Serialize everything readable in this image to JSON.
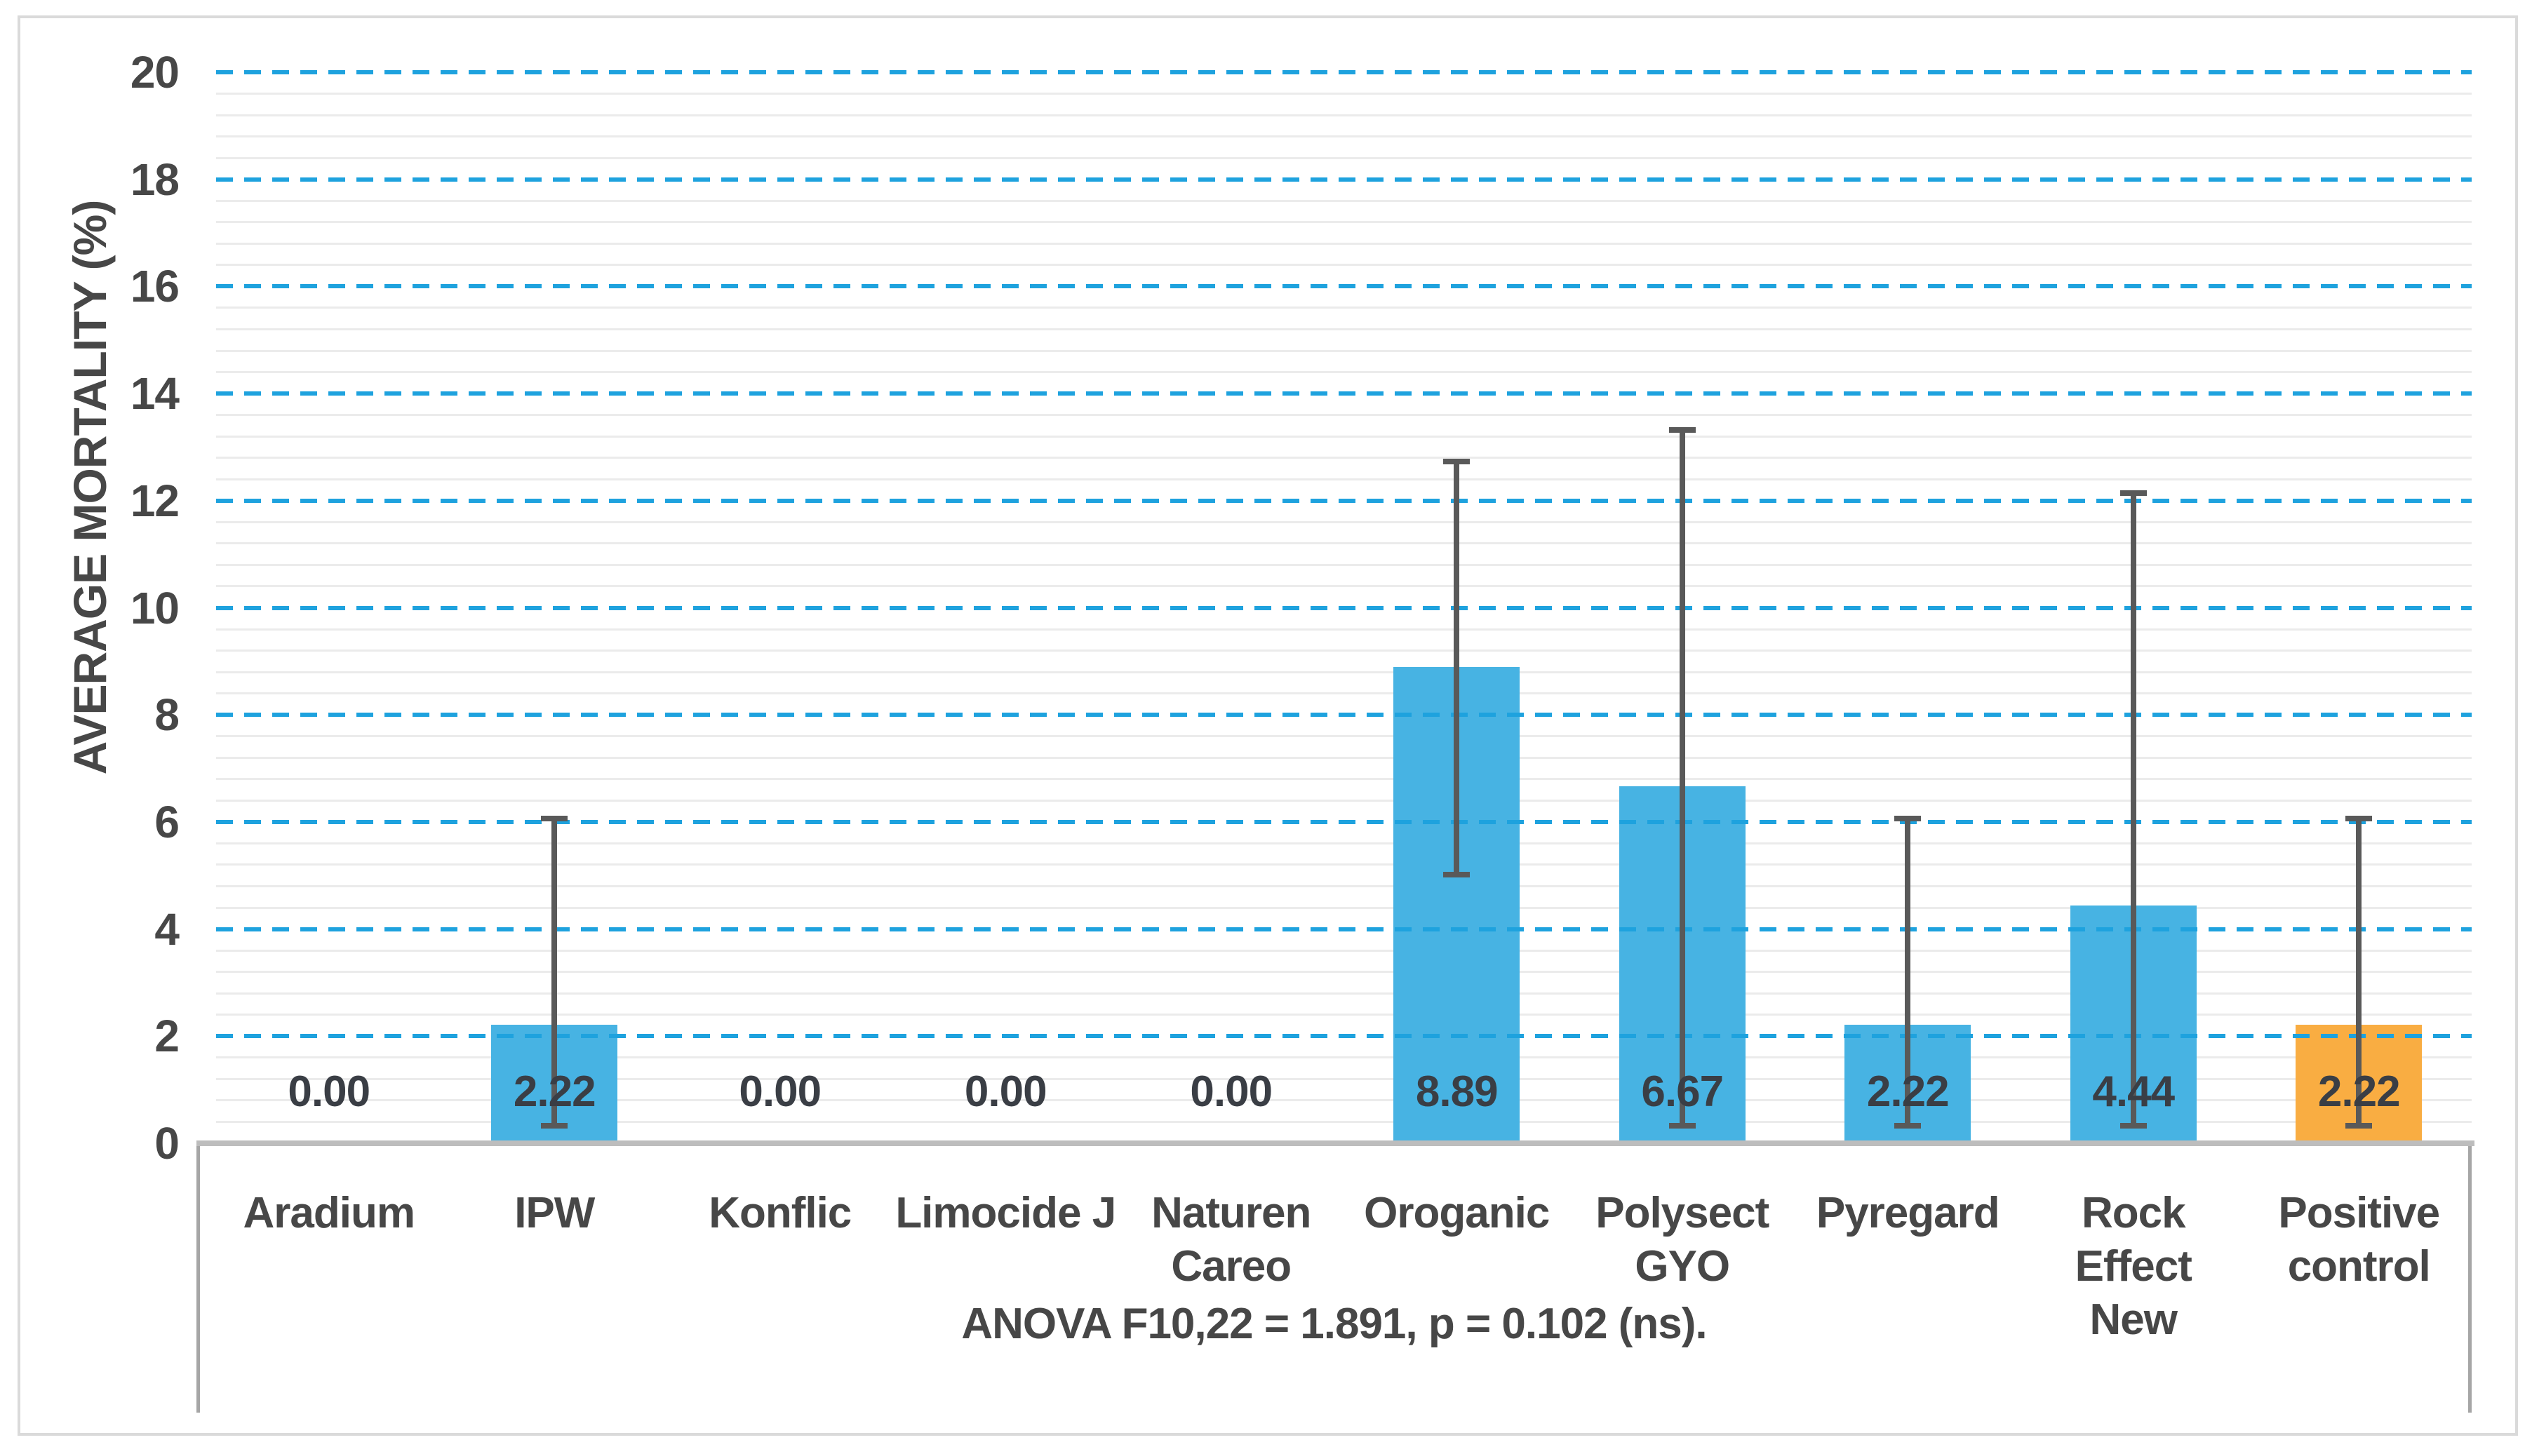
{
  "chart_data": {
    "type": "bar",
    "title": "",
    "ylabel": "AVERAGE MORTALITY (%)",
    "xlabel": "",
    "ylim": [
      0,
      20
    ],
    "y_major_unit": 2,
    "y_minor_unit": 0.4,
    "y_tick_labels": [
      "0",
      "2",
      "4",
      "6",
      "8",
      "10",
      "12",
      "14",
      "16",
      "18",
      "20"
    ],
    "grid": "major dashed blue horizontal, minor solid light gray horizontal",
    "legend": "none",
    "categories": [
      "Aradium",
      "IPW",
      "Konflic",
      "Limocide J",
      "Naturen Careo",
      "Oroganic",
      "Polysect GYO",
      "Pyregard",
      "Rock Effect New",
      "Positive control"
    ],
    "category_lines": [
      [
        "Aradium"
      ],
      [
        "IPW"
      ],
      [
        "Konflic"
      ],
      [
        "Limocide J"
      ],
      [
        "Naturen",
        "Careo"
      ],
      [
        "Oroganic"
      ],
      [
        "Polysect",
        "GYO"
      ],
      [
        "Pyregard"
      ],
      [
        "Rock Effect",
        "New"
      ],
      [
        "Positive",
        "control"
      ]
    ],
    "values": [
      0.0,
      2.22,
      0.0,
      0.0,
      0.0,
      8.89,
      6.67,
      2.22,
      4.44,
      2.22
    ],
    "data_labels": [
      "0.00",
      "2.22",
      "0.00",
      "0.00",
      "0.00",
      "8.89",
      "6.67",
      "2.22",
      "4.44",
      "2.22"
    ],
    "error_bars": [
      null,
      {
        "low": 0.33,
        "high": 6.07
      },
      null,
      null,
      null,
      {
        "low": 5.02,
        "high": 12.73
      },
      {
        "low": 0.33,
        "high": 13.32
      },
      {
        "low": 0.33,
        "high": 6.07
      },
      {
        "low": 0.33,
        "high": 12.14
      },
      {
        "low": 0.33,
        "high": 6.07
      }
    ],
    "bar_colors": [
      "#47B3E3",
      "#47B3E3",
      "#47B3E3",
      "#47B3E3",
      "#47B3E3",
      "#47B3E3",
      "#47B3E3",
      "#47B3E3",
      "#47B3E3",
      "#F9AD42"
    ],
    "annotation": "ANOVA F10,22 = 1.891, p = 0.102 (ns).",
    "colors": {
      "bar_blue": "#47B3E3",
      "bar_orange": "#F9AD42",
      "major_gridline": "#1EA2DE",
      "minor_gridline": "#EBEBEB",
      "error_bar": "#595959",
      "axis_text": "#474747",
      "data_label_text": "#3A3E45",
      "baseline": "#BDBDBD",
      "label_box_border": "#A6A6A6",
      "outer_border": "#DADADA"
    }
  }
}
